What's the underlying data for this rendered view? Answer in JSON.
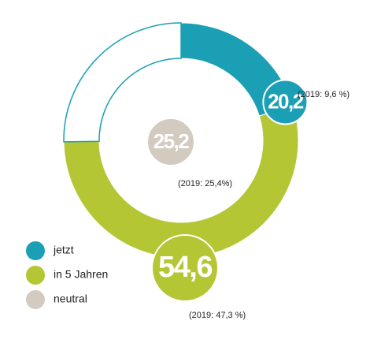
{
  "chart_data": {
    "type": "pie",
    "categories": [
      "jetzt",
      "in 5 Jahren",
      "neutral"
    ],
    "values": [
      20.2,
      54.6,
      25.2
    ],
    "value_labels": [
      "20,2",
      "54,6",
      "25,2"
    ],
    "colors": [
      "#1a9fb5",
      "#b5c634",
      "#d3cbc0"
    ],
    "annotations": [
      "(2019: 9,6 %)",
      "(2019: 47,3 %)",
      "(2019: 25,4%)"
    ]
  }
}
